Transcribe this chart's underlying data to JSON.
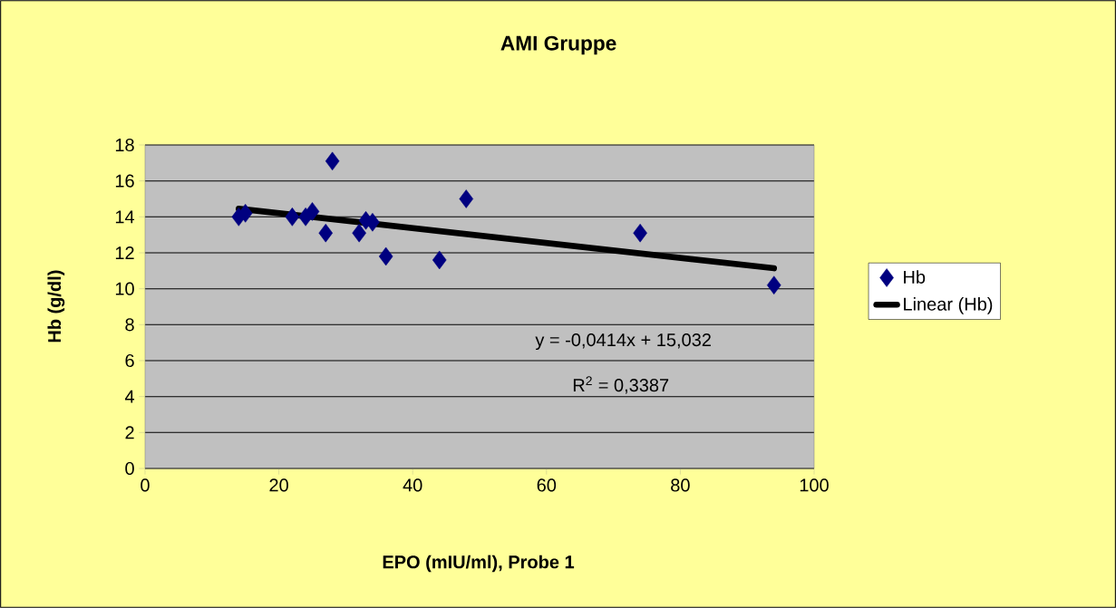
{
  "chart_data": {
    "type": "scatter",
    "title": "AMI Gruppe",
    "xlabel": "EPO (mIU/ml), Probe 1",
    "ylabel": "Hb (g/dl)",
    "xlim": [
      0,
      100
    ],
    "xticks": [
      0,
      20,
      40,
      60,
      80,
      100
    ],
    "ylim": [
      0,
      18
    ],
    "yticks": [
      0,
      2,
      4,
      6,
      8,
      10,
      12,
      14,
      16,
      18
    ],
    "grid": "y",
    "legend": "right",
    "marker": "diamond",
    "series": [
      {
        "name": "Hb",
        "color": "#000080",
        "x": [
          14,
          15,
          22,
          24,
          25,
          28,
          27,
          32,
          33,
          34,
          36,
          44,
          48,
          74,
          94
        ],
        "values": [
          14.0,
          14.2,
          14.0,
          14.0,
          14.3,
          17.1,
          13.1,
          13.1,
          13.8,
          13.7,
          11.8,
          11.6,
          15.0,
          13.1,
          10.2
        ]
      },
      {
        "name": "Linear (Hb)",
        "type": "line",
        "color": "#000000",
        "marker": "none",
        "x": [
          14,
          94
        ],
        "values": [
          14.45,
          11.14
        ]
      }
    ],
    "annotations": [
      "y = -0,0414x + 15,032",
      "R$^{2}$ = 0,3387"
    ]
  }
}
